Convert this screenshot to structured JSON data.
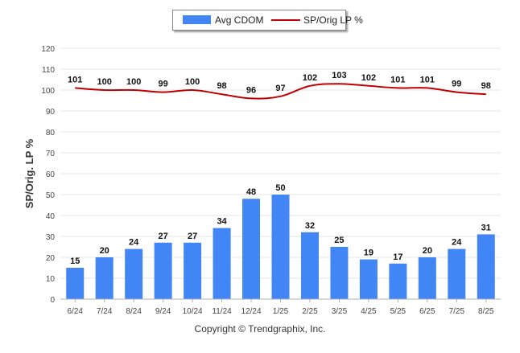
{
  "chart_data": {
    "type": "bar",
    "categories": [
      "6/24",
      "7/24",
      "8/24",
      "9/24",
      "10/24",
      "11/24",
      "12/24",
      "1/25",
      "2/25",
      "3/25",
      "4/25",
      "5/25",
      "6/25",
      "7/25",
      "8/25"
    ],
    "series": [
      {
        "name": "Avg CDOM",
        "type": "bar",
        "color": "#4285f4",
        "values": [
          15,
          20,
          24,
          27,
          27,
          34,
          48,
          50,
          32,
          25,
          19,
          17,
          20,
          24,
          31
        ]
      },
      {
        "name": "SP/Orig LP %",
        "type": "line",
        "color": "#c00000",
        "values": [
          101,
          100,
          100,
          99,
          100,
          98,
          96,
          97,
          102,
          103,
          102,
          101,
          101,
          99,
          98
        ]
      }
    ],
    "ylabel": "SP/Orig. LP %",
    "xlabel": "",
    "ylim": [
      0,
      120
    ],
    "yticks": [
      0,
      10,
      20,
      30,
      40,
      50,
      60,
      70,
      80,
      90,
      100,
      110,
      120
    ],
    "grid": true,
    "legend": "top-center"
  },
  "legend": {
    "bar_label": "Avg CDOM",
    "line_label": "SP/Orig LP %"
  },
  "footer": {
    "copyright": "Copyright © Trendgraphix, Inc."
  }
}
